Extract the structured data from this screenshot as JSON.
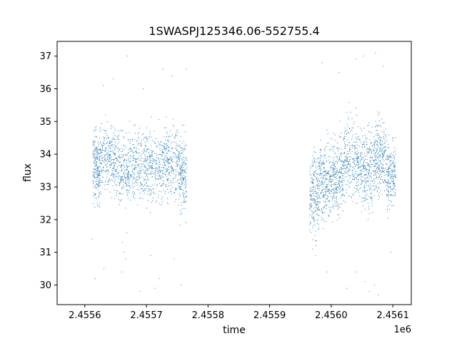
{
  "chart_data": {
    "type": "scatter",
    "title": "1SWASPJ125346.06-552755.4",
    "xlabel": "time",
    "ylabel": "flux",
    "x_offset_label": "1e6",
    "x_tick_values": [
      2455600,
      2455700,
      2455800,
      2455900,
      2456000,
      2456100
    ],
    "x_tick_labels": [
      "2.4556",
      "2.4557",
      "2.4558",
      "2.4559",
      "2.4560",
      "2.4561"
    ],
    "y_tick_values": [
      30,
      31,
      32,
      33,
      34,
      35,
      36,
      37
    ],
    "y_tick_labels": [
      "30",
      "31",
      "32",
      "33",
      "34",
      "35",
      "36",
      "37"
    ],
    "xlim": [
      2455555,
      2456130
    ],
    "ylim": [
      29.4,
      37.45
    ],
    "grid": false,
    "marker_color": "#1f77b4",
    "point_groups": [
      {
        "x_range": [
          2455613,
          2455625
        ],
        "y_center": 33.6,
        "y_spread": 0.75,
        "count": 220
      },
      {
        "x_range": [
          2455625,
          2455650
        ],
        "y_center": 33.9,
        "y_spread": 0.7,
        "count": 260
      },
      {
        "x_range": [
          2455650,
          2455672
        ],
        "y_center": 33.5,
        "y_spread": 0.7,
        "count": 220
      },
      {
        "x_range": [
          2455672,
          2455700
        ],
        "y_center": 33.7,
        "y_spread": 0.75,
        "count": 260
      },
      {
        "x_range": [
          2455700,
          2455728
        ],
        "y_center": 33.6,
        "y_spread": 0.75,
        "count": 260
      },
      {
        "x_range": [
          2455728,
          2455752
        ],
        "y_center": 33.8,
        "y_spread": 0.75,
        "count": 240
      },
      {
        "x_range": [
          2455752,
          2455765
        ],
        "y_center": 33.3,
        "y_spread": 0.8,
        "count": 200
      },
      {
        "x_range": [
          2455965,
          2455980
        ],
        "y_center": 32.8,
        "y_spread": 0.9,
        "count": 220
      },
      {
        "x_range": [
          2455980,
          2456000
        ],
        "y_center": 33.2,
        "y_spread": 0.8,
        "count": 260
      },
      {
        "x_range": [
          2456000,
          2456020
        ],
        "y_center": 33.3,
        "y_spread": 0.85,
        "count": 260
      },
      {
        "x_range": [
          2456020,
          2456045
        ],
        "y_center": 33.8,
        "y_spread": 0.85,
        "count": 280
      },
      {
        "x_range": [
          2456045,
          2456070
        ],
        "y_center": 33.6,
        "y_spread": 0.85,
        "count": 280
      },
      {
        "x_range": [
          2456070,
          2456090
        ],
        "y_center": 33.9,
        "y_spread": 0.8,
        "count": 260
      },
      {
        "x_range": [
          2456090,
          2456105
        ],
        "y_center": 33.4,
        "y_spread": 0.7,
        "count": 200
      }
    ],
    "outlier_points": [
      {
        "x": 2455661,
        "y": 31.3
      },
      {
        "x": 2455664,
        "y": 31.0
      },
      {
        "x": 2455666,
        "y": 30.8
      },
      {
        "x": 2455668,
        "y": 31.6
      },
      {
        "x": 2455660,
        "y": 30.4
      },
      {
        "x": 2455714,
        "y": 29.9
      },
      {
        "x": 2455721,
        "y": 30.2
      },
      {
        "x": 2455707,
        "y": 30.9
      },
      {
        "x": 2455689,
        "y": 29.8
      },
      {
        "x": 2455631,
        "y": 30.5
      },
      {
        "x": 2455630,
        "y": 36.1
      },
      {
        "x": 2455646,
        "y": 36.3
      },
      {
        "x": 2455669,
        "y": 37.0
      },
      {
        "x": 2455695,
        "y": 36.0
      },
      {
        "x": 2455727,
        "y": 36.6
      },
      {
        "x": 2455742,
        "y": 36.4
      },
      {
        "x": 2455765,
        "y": 36.6
      },
      {
        "x": 2455612,
        "y": 31.4
      },
      {
        "x": 2455617,
        "y": 30.2
      },
      {
        "x": 2455745,
        "y": 30.8
      },
      {
        "x": 2455756,
        "y": 30.0
      },
      {
        "x": 2455985,
        "y": 36.8
      },
      {
        "x": 2456013,
        "y": 36.5
      },
      {
        "x": 2456040,
        "y": 36.9
      },
      {
        "x": 2456052,
        "y": 37.0
      },
      {
        "x": 2456072,
        "y": 37.1
      },
      {
        "x": 2456085,
        "y": 36.7
      },
      {
        "x": 2455993,
        "y": 30.4
      },
      {
        "x": 2456025,
        "y": 29.9
      },
      {
        "x": 2456040,
        "y": 30.4
      },
      {
        "x": 2456055,
        "y": 30.1
      },
      {
        "x": 2456062,
        "y": 29.8
      },
      {
        "x": 2456070,
        "y": 30.0
      },
      {
        "x": 2456076,
        "y": 29.7
      },
      {
        "x": 2456097,
        "y": 31.0
      },
      {
        "x": 2455970,
        "y": 31.1
      },
      {
        "x": 2455975,
        "y": 30.9
      }
    ]
  }
}
